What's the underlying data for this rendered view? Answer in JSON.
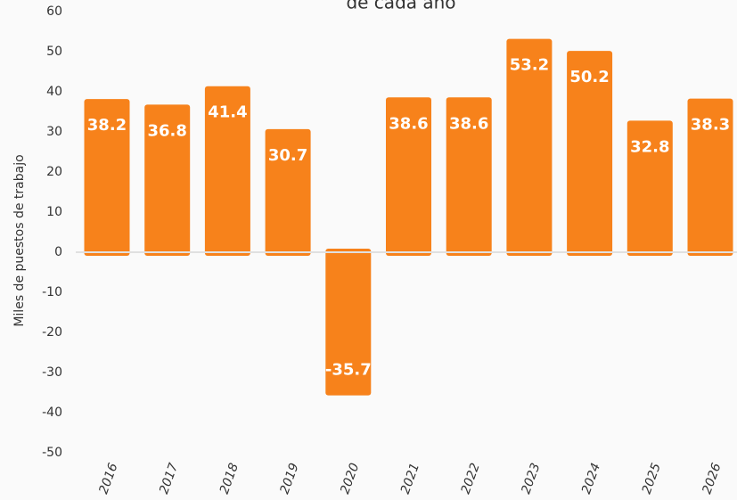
{
  "chart_data": {
    "type": "bar",
    "title": "de cada año",
    "y_label": "Miles de puestos de trabajo",
    "categories": [
      "2016",
      "2017",
      "2018",
      "2019",
      "2020",
      "2021",
      "2022",
      "2023",
      "2024",
      "2025",
      "2026"
    ],
    "values": [
      38.2,
      36.8,
      41.4,
      30.7,
      -35.7,
      38.6,
      38.6,
      53.2,
      50.2,
      32.8,
      38.3
    ],
    "color": "#f7821b",
    "ylim": [
      -50,
      60
    ],
    "yticks": [
      -50,
      -40,
      -30,
      -20,
      -10,
      0,
      10,
      20,
      30,
      40,
      50,
      60
    ]
  }
}
